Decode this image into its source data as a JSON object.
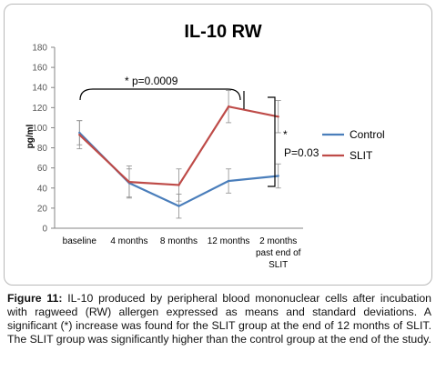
{
  "chart_data": {
    "type": "line",
    "title": "IL-10 RW",
    "xlabel": "",
    "ylabel": "pg/ml",
    "ylim": [
      0,
      180
    ],
    "yticks": [
      "0",
      "20",
      "40",
      "60",
      "80",
      "100",
      "120",
      "140",
      "160",
      "180"
    ],
    "categories": [
      "baseline",
      "4 months",
      "8 months",
      "12 months",
      "2 months\npast end of\nSLIT"
    ],
    "series": [
      {
        "name": "Control",
        "color": "#4a7ebb",
        "values": [
          95,
          45,
          22,
          47,
          52
        ],
        "error": [
          12,
          14,
          12,
          12,
          12
        ]
      },
      {
        "name": "SLIT",
        "color": "#be4b48",
        "values": [
          93,
          46,
          43,
          121,
          111
        ],
        "error": [
          14,
          16,
          16,
          16,
          16
        ]
      }
    ],
    "legend_position": "right",
    "grid": false,
    "annotations": [
      {
        "text": "* p=0.0009"
      },
      {
        "text": "*"
      },
      {
        "text": "P=0.03"
      }
    ]
  },
  "caption": {
    "label": "Figure 11:",
    "text": " IL-10 produced by peripheral blood mononuclear cells after incubation with ragweed (RW) allergen expressed as means and standard deviations. A significant (*) increase was found for the SLIT group at the end of 12 months of SLIT. The SLIT group was significantly higher than the control group at the end of the study."
  }
}
